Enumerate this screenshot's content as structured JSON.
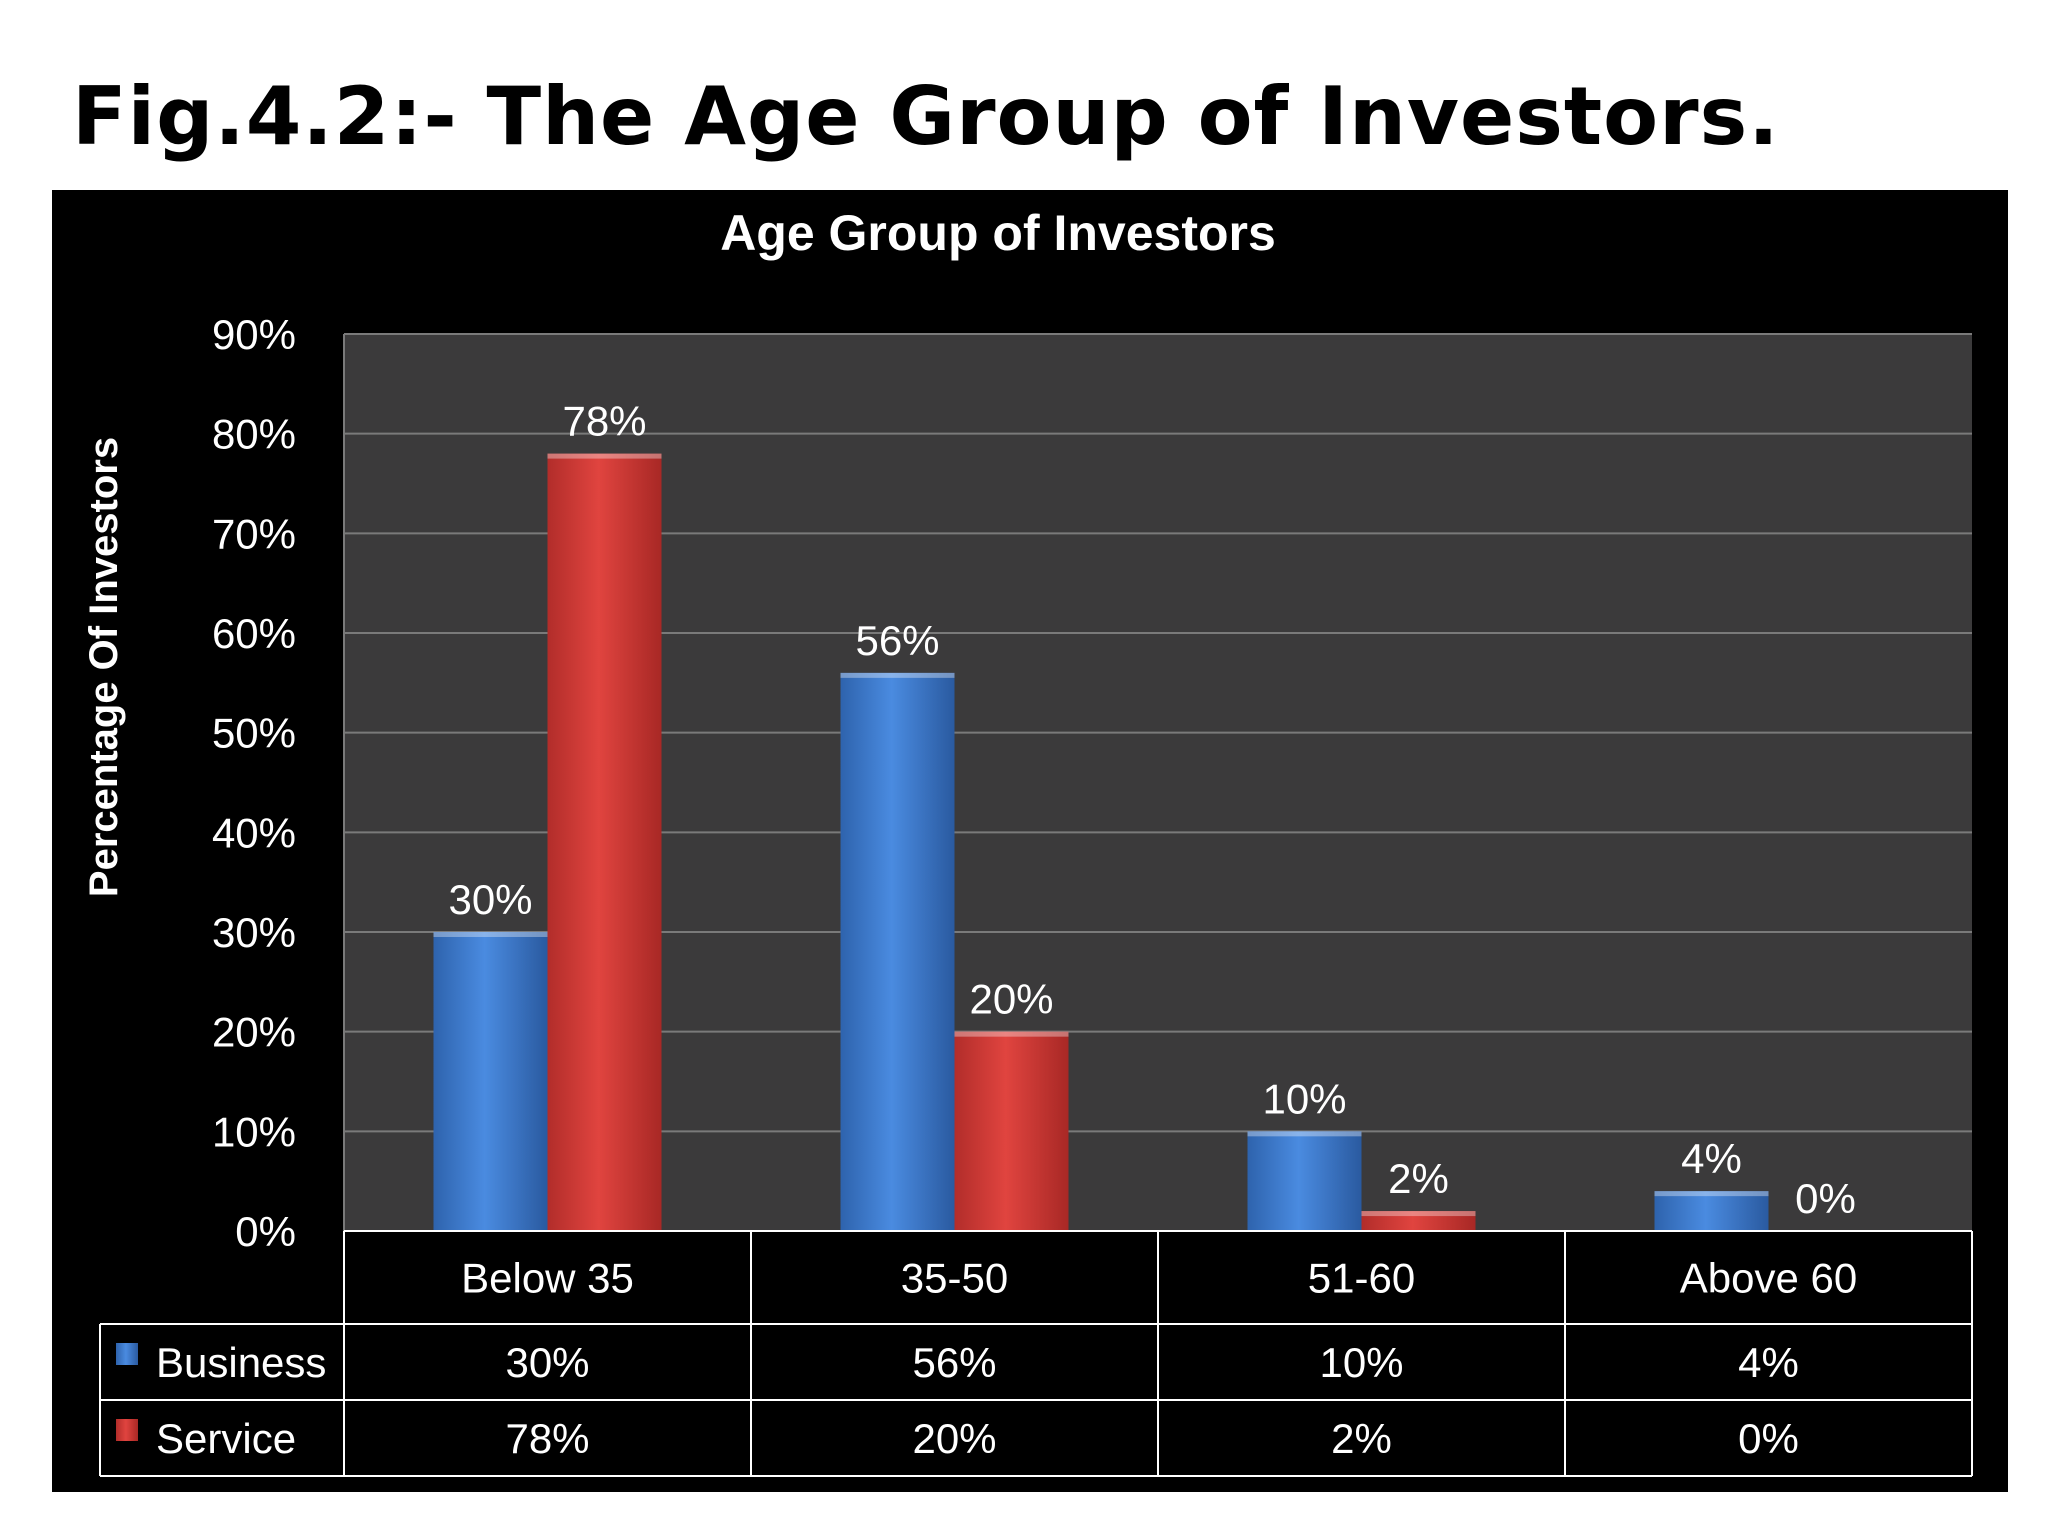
{
  "figure": {
    "caption": "Fig.4.2:- The Age Group of Investors."
  },
  "colors": {
    "business": "#3f7fd4",
    "service": "#d33b38",
    "plot_background": "#3b3a3b",
    "panel_background": "#000000",
    "gridline": "#7a7a7a",
    "text": "#ffffff"
  },
  "chart_data": {
    "type": "bar",
    "title": "Age Group of Investors",
    "xlabel": "",
    "ylabel": "Percentage Of Investors",
    "categories": [
      "Below 35",
      "35-50",
      "51-60",
      "Above 60"
    ],
    "series": [
      {
        "name": "Business",
        "values": [
          30,
          56,
          10,
          4
        ],
        "labels": [
          "30%",
          "56%",
          "10%",
          "4%"
        ]
      },
      {
        "name": "Service",
        "values": [
          78,
          20,
          2,
          0
        ],
        "labels": [
          "78%",
          "20%",
          "2%",
          "0%"
        ]
      }
    ],
    "ylim": [
      0,
      90
    ],
    "yticks": [
      0,
      10,
      20,
      30,
      40,
      50,
      60,
      70,
      80,
      90
    ],
    "ytick_labels": [
      "0%",
      "10%",
      "20%",
      "30%",
      "40%",
      "50%",
      "60%",
      "70%",
      "80%",
      "90%"
    ],
    "grid": true,
    "data_table": true,
    "legend": "in data table (left)"
  }
}
